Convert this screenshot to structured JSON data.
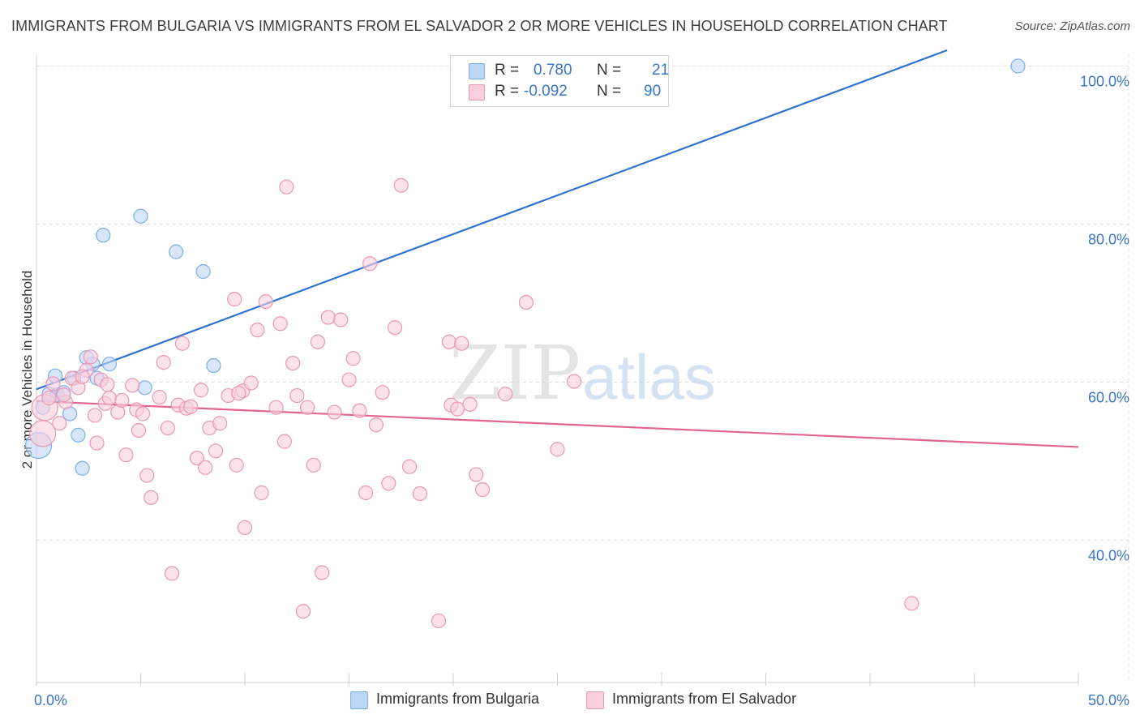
{
  "chart_data": {
    "type": "scatter",
    "title": "IMMIGRANTS FROM BULGARIA VS IMMIGRANTS FROM EL SALVADOR 2 OR MORE VEHICLES IN HOUSEHOLD CORRELATION CHART",
    "source": "Source: ZipAtlas.com",
    "ylabel": "2 or more Vehicles in Household",
    "xlabel": "",
    "xlim": [
      0,
      50
    ],
    "ylim": [
      22,
      102
    ],
    "x_tick_labels": [
      "0.0%",
      "50.0%"
    ],
    "y_ticks": [
      {
        "value": 100,
        "label": "100.0%"
      },
      {
        "value": 80,
        "label": "80.0%"
      },
      {
        "value": 60,
        "label": "60.0%"
      },
      {
        "value": 40,
        "label": "40.0%"
      }
    ],
    "watermark": {
      "bold": "ZIP",
      "light": "atlas"
    },
    "series": [
      {
        "name": "Immigrants from Bulgaria",
        "color": "#7eaee6",
        "fill": "#bcd6f5",
        "line_color": "#2f72d0",
        "r_label": "R =",
        "r_value": "0.780",
        "n_label": "N =",
        "n_value": "21",
        "trend": {
          "x": [
            0,
            43.7
          ],
          "y": [
            59.1,
            102
          ]
        },
        "points": [
          {
            "x": 0.3,
            "y": 56.8
          },
          {
            "x": 0.6,
            "y": 58.5
          },
          {
            "x": 0.9,
            "y": 60.8
          },
          {
            "x": 1.0,
            "y": 58.4
          },
          {
            "x": 1.3,
            "y": 58.7
          },
          {
            "x": 1.6,
            "y": 56.0
          },
          {
            "x": 1.8,
            "y": 60.5
          },
          {
            "x": 2.0,
            "y": 53.3
          },
          {
            "x": 2.2,
            "y": 49.1
          },
          {
            "x": 2.4,
            "y": 63.1
          },
          {
            "x": 2.7,
            "y": 62.3
          },
          {
            "x": 2.9,
            "y": 60.5
          },
          {
            "x": 3.2,
            "y": 78.6
          },
          {
            "x": 3.5,
            "y": 62.3
          },
          {
            "x": 5.0,
            "y": 81.0
          },
          {
            "x": 5.2,
            "y": 59.3
          },
          {
            "x": 6.7,
            "y": 76.5
          },
          {
            "x": 8.0,
            "y": 74.0
          },
          {
            "x": 8.5,
            "y": 62.1
          },
          {
            "x": 47.1,
            "y": 100.0
          },
          {
            "x": 0.1,
            "y": 52.0,
            "large": true
          }
        ]
      },
      {
        "name": "Immigrants from El Salvador",
        "color": "#eb97b4",
        "fill": "#f9cede",
        "line_color": "#e06590",
        "r_label": "R =",
        "r_value": "-0.092",
        "n_label": "N =",
        "n_value": "90",
        "trend": {
          "x": [
            0,
            50
          ],
          "y": [
            57.6,
            51.8
          ]
        },
        "points": [
          {
            "x": 0.3,
            "y": 53.5,
            "large": true
          },
          {
            "x": 0.4,
            "y": 56.8,
            "large": true
          },
          {
            "x": 0.6,
            "y": 58.0
          },
          {
            "x": 0.8,
            "y": 59.8
          },
          {
            "x": 1.1,
            "y": 54.8
          },
          {
            "x": 1.4,
            "y": 57.5
          },
          {
            "x": 1.7,
            "y": 60.5
          },
          {
            "x": 2.0,
            "y": 59.3
          },
          {
            "x": 2.4,
            "y": 61.5
          },
          {
            "x": 2.6,
            "y": 63.2
          },
          {
            "x": 2.8,
            "y": 55.8
          },
          {
            "x": 2.9,
            "y": 52.3
          },
          {
            "x": 3.1,
            "y": 60.3
          },
          {
            "x": 3.3,
            "y": 57.3
          },
          {
            "x": 3.5,
            "y": 58.0
          },
          {
            "x": 3.9,
            "y": 56.2
          },
          {
            "x": 4.1,
            "y": 57.7
          },
          {
            "x": 4.3,
            "y": 50.8
          },
          {
            "x": 4.6,
            "y": 59.6
          },
          {
            "x": 4.8,
            "y": 56.5
          },
          {
            "x": 5.1,
            "y": 56.0
          },
          {
            "x": 5.3,
            "y": 48.2
          },
          {
            "x": 5.5,
            "y": 45.4
          },
          {
            "x": 5.9,
            "y": 58.1
          },
          {
            "x": 6.1,
            "y": 62.5
          },
          {
            "x": 6.3,
            "y": 54.2
          },
          {
            "x": 6.5,
            "y": 35.8
          },
          {
            "x": 6.8,
            "y": 57.1
          },
          {
            "x": 7.0,
            "y": 64.9
          },
          {
            "x": 7.2,
            "y": 56.7
          },
          {
            "x": 7.4,
            "y": 56.9
          },
          {
            "x": 7.7,
            "y": 50.4
          },
          {
            "x": 7.9,
            "y": 59.0
          },
          {
            "x": 8.1,
            "y": 49.2
          },
          {
            "x": 8.3,
            "y": 54.2
          },
          {
            "x": 8.6,
            "y": 51.3
          },
          {
            "x": 8.8,
            "y": 54.8
          },
          {
            "x": 9.2,
            "y": 58.3
          },
          {
            "x": 9.5,
            "y": 70.5
          },
          {
            "x": 9.6,
            "y": 49.5
          },
          {
            "x": 9.9,
            "y": 58.9
          },
          {
            "x": 10.0,
            "y": 41.6
          },
          {
            "x": 10.3,
            "y": 59.9
          },
          {
            "x": 10.6,
            "y": 66.6
          },
          {
            "x": 10.8,
            "y": 46.0
          },
          {
            "x": 11.0,
            "y": 70.2
          },
          {
            "x": 11.5,
            "y": 56.8
          },
          {
            "x": 11.7,
            "y": 67.4
          },
          {
            "x": 11.9,
            "y": 52.5
          },
          {
            "x": 12.0,
            "y": 84.7
          },
          {
            "x": 12.3,
            "y": 62.4
          },
          {
            "x": 12.5,
            "y": 58.3
          },
          {
            "x": 12.8,
            "y": 31.0
          },
          {
            "x": 13.0,
            "y": 56.8
          },
          {
            "x": 13.3,
            "y": 49.5
          },
          {
            "x": 13.5,
            "y": 65.1
          },
          {
            "x": 13.7,
            "y": 35.9
          },
          {
            "x": 14.0,
            "y": 68.2
          },
          {
            "x": 14.3,
            "y": 56.2
          },
          {
            "x": 14.6,
            "y": 67.9
          },
          {
            "x": 15.0,
            "y": 60.3
          },
          {
            "x": 15.2,
            "y": 63.0
          },
          {
            "x": 15.5,
            "y": 56.4
          },
          {
            "x": 15.8,
            "y": 46.0
          },
          {
            "x": 16.0,
            "y": 75.0
          },
          {
            "x": 16.3,
            "y": 54.6
          },
          {
            "x": 16.6,
            "y": 58.7
          },
          {
            "x": 16.9,
            "y": 47.2
          },
          {
            "x": 17.2,
            "y": 66.9
          },
          {
            "x": 17.5,
            "y": 84.9
          },
          {
            "x": 17.9,
            "y": 49.3
          },
          {
            "x": 18.4,
            "y": 45.9
          },
          {
            "x": 19.3,
            "y": 29.8
          },
          {
            "x": 19.8,
            "y": 65.1
          },
          {
            "x": 19.9,
            "y": 57.1
          },
          {
            "x": 20.2,
            "y": 56.6
          },
          {
            "x": 20.4,
            "y": 64.9
          },
          {
            "x": 20.8,
            "y": 57.2
          },
          {
            "x": 21.1,
            "y": 48.3
          },
          {
            "x": 21.4,
            "y": 46.4
          },
          {
            "x": 22.5,
            "y": 58.5
          },
          {
            "x": 23.5,
            "y": 70.1
          },
          {
            "x": 25.0,
            "y": 51.5
          },
          {
            "x": 25.8,
            "y": 60.1
          },
          {
            "x": 42.0,
            "y": 32.0
          },
          {
            "x": 1.3,
            "y": 58.4
          },
          {
            "x": 2.2,
            "y": 60.7
          },
          {
            "x": 3.4,
            "y": 59.7
          },
          {
            "x": 4.9,
            "y": 53.9
          },
          {
            "x": 9.7,
            "y": 58.6
          }
        ]
      }
    ]
  }
}
